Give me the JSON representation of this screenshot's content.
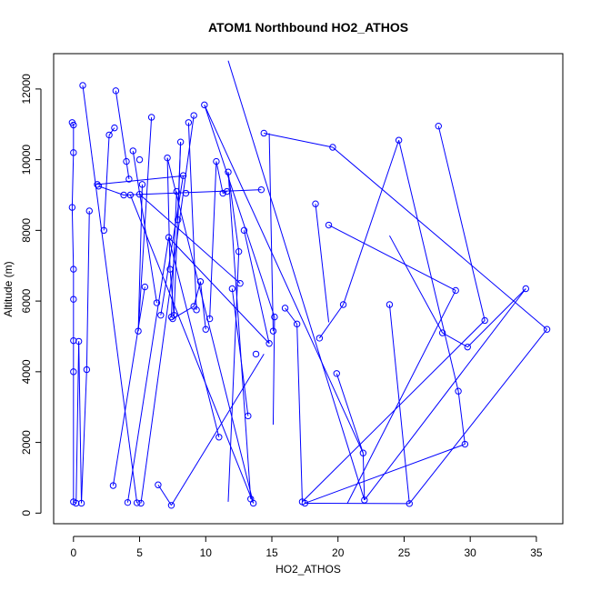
{
  "chart_data": {
    "type": "scatter",
    "title": "ATOM1 Northbound HO2_ATHOS",
    "xlabel": "HO2_ATHOS",
    "ylabel": "Altitude (m)",
    "xlim": [
      -1.5,
      37
    ],
    "ylim": [
      -300,
      13000
    ],
    "xticks": [
      0,
      5,
      10,
      15,
      20,
      25,
      30,
      35
    ],
    "yticks": [
      0,
      2000,
      4000,
      6000,
      8000,
      10000,
      12000
    ],
    "grid": false,
    "legend": "none",
    "color": "#0000ff",
    "point_style": "open-circle",
    "connect_points": true,
    "series": [
      {
        "x": [
          -0.1,
          0.0,
          0.0,
          -0.1,
          0.0,
          0.0,
          0.0,
          0.0,
          0.0,
          0.2,
          0.4,
          0.6,
          1.0,
          1.2
        ],
        "y": [
          11050,
          10980,
          10200,
          8650,
          6900,
          6050,
          4880,
          4000,
          320,
          280,
          4860,
          280,
          4060,
          8550
        ]
      },
      {
        "x": [
          0.7,
          2.7,
          2.3,
          3.1,
          3.2,
          4.0,
          4.2,
          4.5,
          4.8,
          4.9,
          5.2,
          5.0,
          5.9,
          6.3,
          7.1,
          7.3,
          7.6,
          7.9,
          8.1,
          8.7
        ],
        "y": [
          12100,
          10700,
          8000,
          10900,
          11950,
          9950,
          9450,
          10250,
          290,
          5150,
          9300,
          10000,
          11200,
          5950,
          10050,
          6900,
          5600,
          8300,
          10500,
          11050
        ]
      },
      {
        "x": [
          1.8,
          1.9,
          3.8,
          4.3,
          5.0,
          5.4,
          6.6,
          7.2,
          7.4,
          7.5,
          7.8,
          8.3,
          8.5,
          9.1,
          9.3,
          9.6,
          10.0,
          10.3,
          10.8,
          11.3,
          11.6,
          12.0,
          12.6,
          13.2,
          13.6
        ],
        "y": [
          9300,
          9250,
          9000,
          9000,
          9020,
          6400,
          5600,
          7800,
          5550,
          5500,
          9100,
          9550,
          9050,
          5850,
          5750,
          6550,
          5200,
          5500,
          9950,
          9050,
          9100,
          6350,
          6500,
          2750,
          280
        ]
      },
      {
        "x": [
          3.0,
          4.1,
          5.1,
          6.4,
          7.4,
          9.1,
          9.9,
          11.0,
          11.7,
          12.5,
          12.9,
          13.4,
          13.8,
          14.2,
          14.4,
          14.8,
          15.1,
          15.2,
          16.0,
          16.9,
          17.3,
          17.5,
          18.3,
          18.6,
          19.3,
          19.6,
          19.9,
          20.4,
          21.9,
          22.0,
          23.9,
          24.6,
          25.4,
          27.6,
          27.9,
          28.9,
          29.1,
          29.6,
          29.8,
          31.1,
          34.2,
          35.8
        ],
        "y": [
          780,
          300,
          280,
          800,
          220,
          11250,
          11550,
          2150,
          9650,
          7400,
          8000,
          400,
          4500,
          9150,
          10750,
          4800,
          5150,
          5550,
          5800,
          5350,
          320,
          280,
          8750,
          4950,
          8150,
          10350,
          3950,
          5900,
          1700,
          370,
          5900,
          10550,
          270,
          10950,
          5100,
          6300,
          3450,
          1950,
          4700,
          5450,
          6350,
          5200
        ]
      }
    ],
    "segments": [
      [
        [
          -0.1,
          11050
        ],
        [
          0.0,
          10980
        ]
      ],
      [
        [
          0.0,
          10980
        ],
        [
          0.0,
          10200
        ]
      ],
      [
        [
          0.0,
          10200
        ],
        [
          -0.1,
          8650
        ]
      ],
      [
        [
          -0.1,
          8650
        ],
        [
          0.0,
          6900
        ]
      ],
      [
        [
          0.0,
          6900
        ],
        [
          0.0,
          6050
        ]
      ],
      [
        [
          0.0,
          6050
        ],
        [
          0.0,
          4880
        ]
      ],
      [
        [
          0.0,
          4880
        ],
        [
          0.0,
          4000
        ]
      ],
      [
        [
          0.0,
          4000
        ],
        [
          0.0,
          320
        ]
      ],
      [
        [
          0.0,
          320
        ],
        [
          0.2,
          280
        ]
      ],
      [
        [
          0.2,
          280
        ],
        [
          0.4,
          4860
        ]
      ],
      [
        [
          0.4,
          4860
        ],
        [
          0.6,
          280
        ]
      ],
      [
        [
          0.6,
          280
        ],
        [
          1.0,
          4060
        ]
      ],
      [
        [
          1.0,
          4060
        ],
        [
          1.2,
          8550
        ]
      ],
      [
        [
          0.7,
          12100
        ],
        [
          4.8,
          290
        ]
      ],
      [
        [
          2.7,
          10700
        ],
        [
          2.3,
          8000
        ]
      ],
      [
        [
          3.1,
          10900
        ],
        [
          2.7,
          10700
        ]
      ],
      [
        [
          3.2,
          11950
        ],
        [
          4.0,
          9950
        ]
      ],
      [
        [
          4.0,
          9950
        ],
        [
          4.2,
          9450
        ]
      ],
      [
        [
          4.5,
          10250
        ],
        [
          6.3,
          5950
        ]
      ],
      [
        [
          4.9,
          5150
        ],
        [
          5.2,
          9300
        ]
      ],
      [
        [
          5.9,
          11200
        ],
        [
          4.9,
          5150
        ]
      ],
      [
        [
          7.1,
          10050
        ],
        [
          7.3,
          6900
        ]
      ],
      [
        [
          7.3,
          6900
        ],
        [
          7.6,
          5600
        ]
      ],
      [
        [
          7.9,
          8300
        ],
        [
          8.1,
          10500
        ]
      ],
      [
        [
          8.1,
          10500
        ],
        [
          7.6,
          5600
        ]
      ],
      [
        [
          8.7,
          11050
        ],
        [
          9.3,
          5750
        ]
      ],
      [
        [
          1.8,
          9300
        ],
        [
          8.5,
          9550
        ]
      ],
      [
        [
          1.9,
          9250
        ],
        [
          3.8,
          9000
        ]
      ],
      [
        [
          3.8,
          9000
        ],
        [
          14.2,
          9150
        ]
      ],
      [
        [
          4.3,
          9000
        ],
        [
          13.6,
          280
        ]
      ],
      [
        [
          5.0,
          9020
        ],
        [
          12.6,
          6500
        ]
      ],
      [
        [
          5.4,
          6400
        ],
        [
          3.0,
          780
        ]
      ],
      [
        [
          6.6,
          5600
        ],
        [
          8.3,
          9550
        ]
      ],
      [
        [
          7.2,
          7800
        ],
        [
          14.8,
          4800
        ]
      ],
      [
        [
          7.4,
          5550
        ],
        [
          7.8,
          9100
        ]
      ],
      [
        [
          7.5,
          5500
        ],
        [
          9.1,
          5850
        ]
      ],
      [
        [
          9.1,
          5850
        ],
        [
          9.6,
          6550
        ]
      ],
      [
        [
          9.6,
          6550
        ],
        [
          10.0,
          5200
        ]
      ],
      [
        [
          10.3,
          5500
        ],
        [
          10.8,
          9950
        ]
      ],
      [
        [
          10.8,
          9950
        ],
        [
          11.3,
          9050
        ]
      ],
      [
        [
          11.3,
          9050
        ],
        [
          11.6,
          9100
        ]
      ],
      [
        [
          12.0,
          6350
        ],
        [
          13.2,
          2750
        ]
      ],
      [
        [
          4.1,
          300
        ],
        [
          7.2,
          7800
        ]
      ],
      [
        [
          5.1,
          280
        ],
        [
          9.1,
          11250
        ]
      ],
      [
        [
          6.4,
          800
        ],
        [
          7.4,
          220
        ]
      ],
      [
        [
          7.4,
          220
        ],
        [
          14.4,
          4500
        ]
      ],
      [
        [
          9.9,
          11550
        ],
        [
          15.2,
          5550
        ]
      ],
      [
        [
          9.9,
          11550
        ],
        [
          21.9,
          1700
        ]
      ],
      [
        [
          11.0,
          2150
        ],
        [
          7.2,
          7800
        ]
      ],
      [
        [
          11.7,
          9650
        ],
        [
          12.5,
          7400
        ]
      ],
      [
        [
          12.5,
          7400
        ],
        [
          11.7,
          320
        ]
      ],
      [
        [
          12.9,
          8000
        ],
        [
          14.8,
          4800
        ]
      ],
      [
        [
          13.4,
          400
        ],
        [
          11.7,
          9650
        ]
      ],
      [
        [
          11.7,
          12800
        ],
        [
          22.0,
          370
        ]
      ],
      [
        [
          14.4,
          10750
        ],
        [
          19.6,
          10350
        ]
      ],
      [
        [
          14.8,
          10750
        ],
        [
          15.1,
          5150
        ]
      ],
      [
        [
          15.2,
          5550
        ],
        [
          15.1,
          2500
        ]
      ],
      [
        [
          16.0,
          5800
        ],
        [
          16.9,
          5350
        ]
      ],
      [
        [
          16.9,
          5350
        ],
        [
          17.3,
          320
        ]
      ],
      [
        [
          17.5,
          280
        ],
        [
          25.4,
          270
        ]
      ],
      [
        [
          18.3,
          8750
        ],
        [
          19.3,
          5400
        ]
      ],
      [
        [
          18.6,
          4950
        ],
        [
          20.4,
          5900
        ]
      ],
      [
        [
          19.3,
          8150
        ],
        [
          28.9,
          6300
        ]
      ],
      [
        [
          19.6,
          10350
        ],
        [
          35.8,
          5200
        ]
      ],
      [
        [
          19.9,
          3950
        ],
        [
          21.9,
          1700
        ]
      ],
      [
        [
          20.4,
          5900
        ],
        [
          24.6,
          10550
        ]
      ],
      [
        [
          21.9,
          1700
        ],
        [
          22.0,
          370
        ]
      ],
      [
        [
          23.9,
          5900
        ],
        [
          25.4,
          270
        ]
      ],
      [
        [
          23.9,
          7850
        ],
        [
          27.9,
          5100
        ]
      ],
      [
        [
          24.6,
          10550
        ],
        [
          29.1,
          3450
        ]
      ],
      [
        [
          25.4,
          270
        ],
        [
          35.8,
          5200
        ]
      ],
      [
        [
          27.6,
          10950
        ],
        [
          31.1,
          5450
        ]
      ],
      [
        [
          27.9,
          5100
        ],
        [
          29.8,
          4700
        ]
      ],
      [
        [
          29.6,
          1950
        ],
        [
          17.5,
          280
        ]
      ],
      [
        [
          29.8,
          4700
        ],
        [
          34.2,
          6350
        ]
      ],
      [
        [
          29.1,
          3450
        ],
        [
          29.6,
          1950
        ]
      ],
      [
        [
          31.1,
          5450
        ],
        [
          17.3,
          320
        ]
      ],
      [
        [
          34.2,
          6350
        ],
        [
          22.0,
          370
        ]
      ],
      [
        [
          28.9,
          6300
        ],
        [
          20.7,
          270
        ]
      ],
      [
        [
          13.6,
          280
        ],
        [
          7.1,
          10050
        ]
      ]
    ]
  }
}
